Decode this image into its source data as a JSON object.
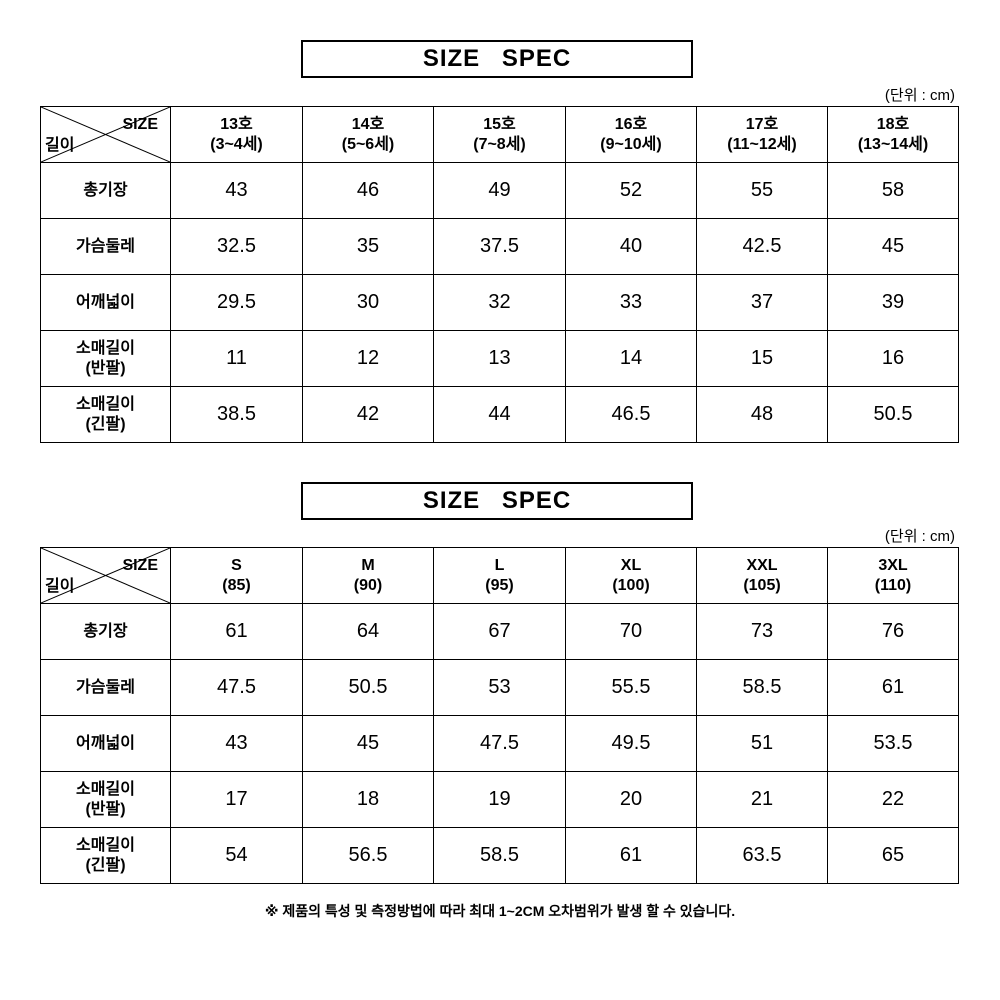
{
  "tables": [
    {
      "title": "SIZE   SPEC",
      "unit": "(단위 : cm)",
      "corner_size": "SIZE",
      "corner_length": "길이",
      "columns": [
        [
          "13호",
          "(3~4세)"
        ],
        [
          "14호",
          "(5~6세)"
        ],
        [
          "15호",
          "(7~8세)"
        ],
        [
          "16호",
          "(9~10세)"
        ],
        [
          "17호",
          "(11~12세)"
        ],
        [
          "18호",
          "(13~14세)"
        ]
      ],
      "rows": [
        {
          "label": [
            "총기장"
          ],
          "values": [
            "43",
            "46",
            "49",
            "52",
            "55",
            "58"
          ]
        },
        {
          "label": [
            "가슴둘레"
          ],
          "values": [
            "32.5",
            "35",
            "37.5",
            "40",
            "42.5",
            "45"
          ]
        },
        {
          "label": [
            "어깨넓이"
          ],
          "values": [
            "29.5",
            "30",
            "32",
            "33",
            "37",
            "39"
          ]
        },
        {
          "label": [
            "소매길이",
            "(반팔)"
          ],
          "values": [
            "11",
            "12",
            "13",
            "14",
            "15",
            "16"
          ]
        },
        {
          "label": [
            "소매길이",
            "(긴팔)"
          ],
          "values": [
            "38.5",
            "42",
            "44",
            "46.5",
            "48",
            "50.5"
          ]
        }
      ]
    },
    {
      "title": "SIZE   SPEC",
      "unit": "(단위 : cm)",
      "corner_size": "SIZE",
      "corner_length": "길이",
      "columns": [
        [
          "S",
          "(85)"
        ],
        [
          "M",
          "(90)"
        ],
        [
          "L",
          "(95)"
        ],
        [
          "XL",
          "(100)"
        ],
        [
          "XXL",
          "(105)"
        ],
        [
          "3XL",
          "(110)"
        ]
      ],
      "rows": [
        {
          "label": [
            "총기장"
          ],
          "values": [
            "61",
            "64",
            "67",
            "70",
            "73",
            "76"
          ]
        },
        {
          "label": [
            "가슴둘레"
          ],
          "values": [
            "47.5",
            "50.5",
            "53",
            "55.5",
            "58.5",
            "61"
          ]
        },
        {
          "label": [
            "어깨넓이"
          ],
          "values": [
            "43",
            "45",
            "47.5",
            "49.5",
            "51",
            "53.5"
          ]
        },
        {
          "label": [
            "소매길이",
            "(반팔)"
          ],
          "values": [
            "17",
            "18",
            "19",
            "20",
            "21",
            "22"
          ]
        },
        {
          "label": [
            "소매길이",
            "(긴팔)"
          ],
          "values": [
            "54",
            "56.5",
            "58.5",
            "61",
            "63.5",
            "65"
          ]
        }
      ]
    }
  ],
  "note": "※ 제품의 특성 및 측정방법에 따라 최대  1~2CM 오차범위가 발생 할 수 있습니다."
}
